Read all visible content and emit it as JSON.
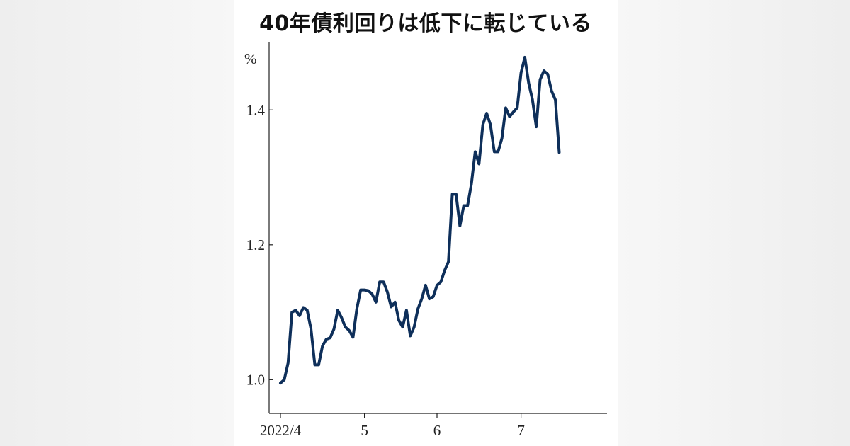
{
  "colors": {
    "line": "#0e2f5a",
    "axis": "#222222",
    "text": "#222222",
    "card": "#ffffff"
  },
  "chart_data": {
    "type": "line",
    "title": "40年債利回りは低下に転じている",
    "unit": "%",
    "xlabel": "",
    "ylabel": "",
    "ylim": [
      0.95,
      1.5
    ],
    "yticks": [
      1.0,
      1.2,
      1.4
    ],
    "ytick_labels": [
      "1.0",
      "1.2",
      "1.4"
    ],
    "xlim": [
      0,
      82
    ],
    "xticks": [
      0,
      22,
      41,
      63
    ],
    "xtick_labels": [
      "2022/4",
      "5",
      "6",
      "7"
    ],
    "grid": false,
    "legend": "none",
    "series": [
      {
        "values": [
          0.995,
          1.0,
          1.025,
          1.1,
          1.103,
          1.095,
          1.107,
          1.103,
          1.075,
          1.022,
          1.022,
          1.05,
          1.06,
          1.062,
          1.075,
          1.103,
          1.092,
          1.078,
          1.073,
          1.063,
          1.105,
          1.133,
          1.133,
          1.132,
          1.127,
          1.115,
          1.145,
          1.145,
          1.13,
          1.108,
          1.115,
          1.088,
          1.078,
          1.103,
          1.065,
          1.078,
          1.105,
          1.12,
          1.14,
          1.12,
          1.123,
          1.14,
          1.145,
          1.162,
          1.175,
          1.275,
          1.275,
          1.228,
          1.258,
          1.258,
          1.29,
          1.338,
          1.32,
          1.378,
          1.395,
          1.378,
          1.338,
          1.338,
          1.358,
          1.403,
          1.39,
          1.397,
          1.403,
          1.455,
          1.478,
          1.44,
          1.415,
          1.375,
          1.445,
          1.458,
          1.453,
          1.428,
          1.415,
          1.337
        ]
      }
    ]
  }
}
